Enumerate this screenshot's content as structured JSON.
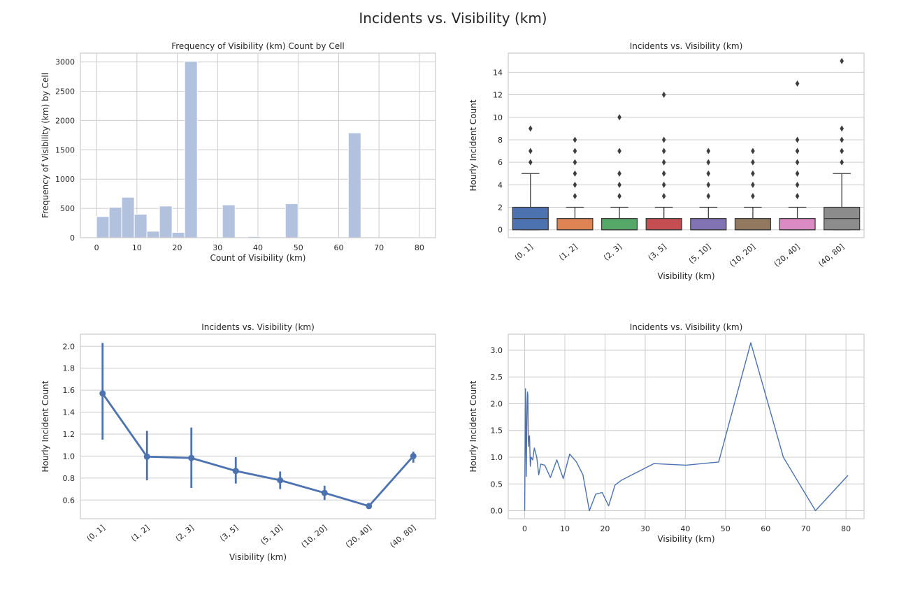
{
  "figure": {
    "suptitle": "Incidents vs. Visibility (km)"
  },
  "chart_data": [
    {
      "type": "bar",
      "title": "Frequency of Visibility (km) Count by Cell",
      "xlabel": "Count of Visibility (km)",
      "ylabel": "Frequency of Visibility (km) by Cell",
      "xlim": [
        -4,
        84
      ],
      "ylim": [
        0,
        3150
      ],
      "xticks": [
        0,
        10,
        20,
        30,
        40,
        50,
        60,
        70,
        80
      ],
      "yticks": [
        0,
        500,
        1000,
        1500,
        2000,
        2500,
        3000
      ],
      "bin_width": 3.12,
      "bins": [
        {
          "x0": 0.0,
          "value": 360
        },
        {
          "x0": 3.12,
          "value": 520
        },
        {
          "x0": 6.24,
          "value": 690
        },
        {
          "x0": 9.36,
          "value": 400
        },
        {
          "x0": 12.48,
          "value": 110
        },
        {
          "x0": 15.6,
          "value": 540
        },
        {
          "x0": 18.72,
          "value": 90
        },
        {
          "x0": 21.84,
          "value": 3010
        },
        {
          "x0": 31.2,
          "value": 560
        },
        {
          "x0": 37.44,
          "value": 20
        },
        {
          "x0": 46.8,
          "value": 580
        },
        {
          "x0": 56.16,
          "value": 8
        },
        {
          "x0": 62.4,
          "value": 1790
        },
        {
          "x0": 78.0,
          "value": 5
        }
      ],
      "color": "#b2c2de"
    },
    {
      "type": "box",
      "title": "Incidents vs. Visibility (km)",
      "xlabel": "Visibility (km)",
      "ylabel": "Hourly Incident Count",
      "ylim": [
        -0.7,
        15.7
      ],
      "yticks": [
        0,
        2,
        4,
        6,
        8,
        10,
        12,
        14
      ],
      "categories": [
        "(0, 1]",
        "(1, 2]",
        "(2, 3]",
        "(3, 5]",
        "(5, 10]",
        "(10, 20]",
        "(20, 40]",
        "(40, 80]"
      ],
      "boxes": [
        {
          "q1": 0,
          "median": 1,
          "q3": 2,
          "whislo": 0,
          "whishi": 5,
          "fliers": [
            6,
            7,
            9
          ],
          "color": "#4c72b0"
        },
        {
          "q1": 0,
          "median": 0,
          "q3": 1,
          "whislo": 0,
          "whishi": 2,
          "fliers": [
            3,
            4,
            5,
            6,
            7,
            8
          ],
          "color": "#dd8452"
        },
        {
          "q1": 0,
          "median": 0,
          "q3": 1,
          "whislo": 0,
          "whishi": 2,
          "fliers": [
            3,
            4,
            5,
            7,
            10
          ],
          "color": "#55a868"
        },
        {
          "q1": 0,
          "median": 0,
          "q3": 1,
          "whislo": 0,
          "whishi": 2,
          "fliers": [
            3,
            4,
            5,
            6,
            7,
            8,
            12
          ],
          "color": "#c44e52"
        },
        {
          "q1": 0,
          "median": 0,
          "q3": 1,
          "whislo": 0,
          "whishi": 2,
          "fliers": [
            3,
            4,
            5,
            6,
            7
          ],
          "color": "#8172b3"
        },
        {
          "q1": 0,
          "median": 0,
          "q3": 1,
          "whislo": 0,
          "whishi": 2,
          "fliers": [
            3,
            4,
            5,
            6,
            7
          ],
          "color": "#937860"
        },
        {
          "q1": 0,
          "median": 0,
          "q3": 1,
          "whislo": 0,
          "whishi": 2,
          "fliers": [
            3,
            4,
            5,
            6,
            7,
            8,
            13
          ],
          "color": "#da8bc3"
        },
        {
          "q1": 0,
          "median": 1,
          "q3": 2,
          "whislo": 0,
          "whishi": 5,
          "fliers": [
            6,
            7,
            8,
            9,
            15
          ],
          "color": "#8c8c8c"
        }
      ]
    },
    {
      "type": "line",
      "title": "Incidents vs. Visibility (km)",
      "xlabel": "Visibility (km)",
      "ylabel": "Hourly Incident Count",
      "ylim": [
        0.43,
        2.11
      ],
      "yticks": [
        0.6,
        0.8,
        1.0,
        1.2,
        1.4,
        1.6,
        1.8,
        2.0
      ],
      "categories": [
        "(0, 1]",
        "(1, 2]",
        "(2, 3]",
        "(3, 5]",
        "(5, 10]",
        "(10, 20]",
        "(20, 40]",
        "(40, 80]"
      ],
      "values": [
        1.57,
        0.995,
        0.983,
        0.865,
        0.78,
        0.665,
        0.545,
        1.0
      ],
      "ci_low": [
        1.15,
        0.78,
        0.71,
        0.75,
        0.7,
        0.6,
        0.52,
        0.94
      ],
      "ci_high": [
        2.03,
        1.23,
        1.26,
        0.99,
        0.86,
        0.73,
        0.57,
        1.04
      ],
      "color": "#4c72b0"
    },
    {
      "type": "line",
      "title": "Incidents vs. Visibility (km)",
      "xlabel": "Visibility (km)",
      "ylabel": "Hourly Incident Count",
      "xlim": [
        -4.1,
        84.5
      ],
      "ylim": [
        -0.15,
        3.3
      ],
      "xticks": [
        0,
        10,
        20,
        30,
        40,
        50,
        60,
        70,
        80
      ],
      "yticks": [
        0.0,
        0.5,
        1.0,
        1.5,
        2.0,
        2.5,
        3.0
      ],
      "x": [
        0,
        0.2,
        0.4,
        0.5,
        0.6,
        0.7,
        0.8,
        0.9,
        1.0,
        1.2,
        1.4,
        1.6,
        2.0,
        2.4,
        3.0,
        3.5,
        4.0,
        5.0,
        6.4,
        8.0,
        9.6,
        11.2,
        12.9,
        14.5,
        16.1,
        17.7,
        19.3,
        20.9,
        22.5,
        24.1,
        32.2,
        40.2,
        48.3,
        56.3,
        64.4,
        72.4,
        80.5
      ],
      "y": [
        0.0,
        2.28,
        0.64,
        1.5,
        2.0,
        2.22,
        2.15,
        1.2,
        1.35,
        1.4,
        0.83,
        1.0,
        0.95,
        1.17,
        1.0,
        0.67,
        0.87,
        0.85,
        0.62,
        0.95,
        0.6,
        1.06,
        0.91,
        0.67,
        0.0,
        0.31,
        0.34,
        0.09,
        0.48,
        0.57,
        0.88,
        0.85,
        0.91,
        3.14,
        1.0,
        0.0,
        0.66
      ],
      "color": "#4c72b0"
    }
  ]
}
